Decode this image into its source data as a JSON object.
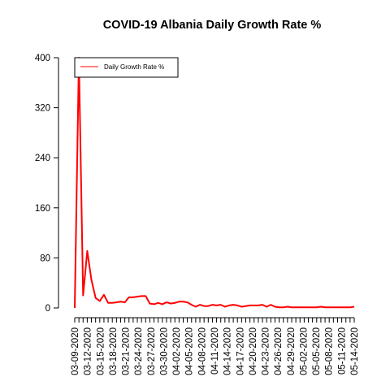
{
  "chart_data": {
    "type": "line",
    "title": "COVID-19 Albania Daily Growth Rate %",
    "xlabel": "",
    "ylabel": "",
    "ylim": [
      0,
      400
    ],
    "y_ticks": [
      0,
      80,
      160,
      240,
      320,
      400
    ],
    "grid": false,
    "legend_position": "top-left",
    "x_tick_labels": [
      "03-09-2020",
      "03-12-2020",
      "03-15-2020",
      "03-18-2020",
      "03-21-2020",
      "03-24-2020",
      "03-27-2020",
      "03-30-2020",
      "04-02-2020",
      "04-05-2020",
      "04-08-2020",
      "04-11-2020",
      "04-14-2020",
      "04-17-2020",
      "04-20-2020",
      "04-23-2020",
      "04-26-2020",
      "04-29-2020",
      "05-02-2020",
      "05-05-2020",
      "05-08-2020",
      "05-11-2020",
      "05-14-2020"
    ],
    "x_start": "03-09-2020",
    "x_end": "05-14-2020",
    "series": [
      {
        "name": "Daily Growth Rate %",
        "color": "#ff0000",
        "values": [
          0,
          400,
          20,
          91,
          45,
          16,
          11,
          21,
          8,
          8,
          9,
          10,
          9,
          17,
          17,
          18,
          19,
          19,
          7,
          6,
          8,
          6,
          9,
          7,
          8,
          10,
          10,
          9,
          5,
          2,
          5,
          3,
          3,
          5,
          4,
          5,
          2,
          4,
          5,
          4,
          2,
          3,
          4,
          4,
          4,
          5,
          2,
          5,
          2,
          1,
          1,
          2,
          1,
          1,
          1,
          1,
          1,
          1,
          1,
          2,
          1,
          1,
          1,
          1,
          1,
          1,
          1,
          2
        ]
      }
    ]
  }
}
